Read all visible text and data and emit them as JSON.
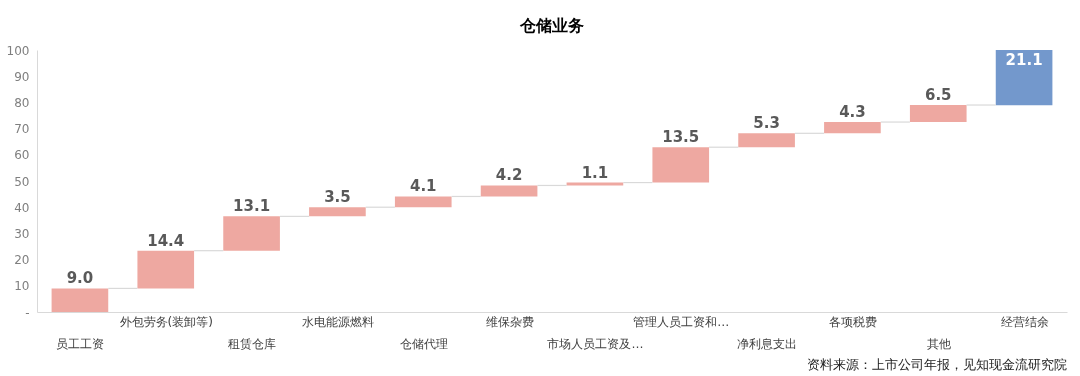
{
  "chart_data": {
    "type": "bar",
    "title": "仓储业务",
    "categories": [
      "员工工资",
      "外包劳务(装卸等)",
      "租赁仓库",
      "水电能源燃料",
      "仓储代理",
      "维保杂费",
      "市场人员工资及…",
      "管理人员工资和…",
      "净利息支出",
      "各项税费",
      "其他",
      "经营结余"
    ],
    "values": [
      9.0,
      14.4,
      13.1,
      3.5,
      4.1,
      4.2,
      1.1,
      13.5,
      5.3,
      4.3,
      6.5,
      21.1
    ],
    "base": [
      0,
      9.0,
      23.4,
      36.5,
      40.0,
      44.1,
      48.3,
      49.4,
      62.9,
      68.2,
      72.5,
      78.9
    ],
    "colors": [
      "#eea8a1",
      "#eea8a1",
      "#eea8a1",
      "#eea8a1",
      "#eea8a1",
      "#eea8a1",
      "#eea8a1",
      "#eea8a1",
      "#eea8a1",
      "#eea8a1",
      "#eea8a1",
      "#7398cc"
    ],
    "ylim": [
      0,
      100
    ],
    "yticks": [
      {
        "value": 0,
        "label": "-"
      },
      10,
      20,
      30,
      40,
      50,
      60,
      70,
      80,
      90,
      100
    ],
    "value_labels": [
      "9.0",
      "14.4",
      "13.1",
      "3.5",
      "4.1",
      "4.2",
      "1.1",
      "13.5",
      "5.3",
      "4.3",
      "6.5",
      "21.1"
    ],
    "grid": false,
    "annotations": [
      "资料来源：上市公司年报，见知现金流研究院"
    ]
  }
}
